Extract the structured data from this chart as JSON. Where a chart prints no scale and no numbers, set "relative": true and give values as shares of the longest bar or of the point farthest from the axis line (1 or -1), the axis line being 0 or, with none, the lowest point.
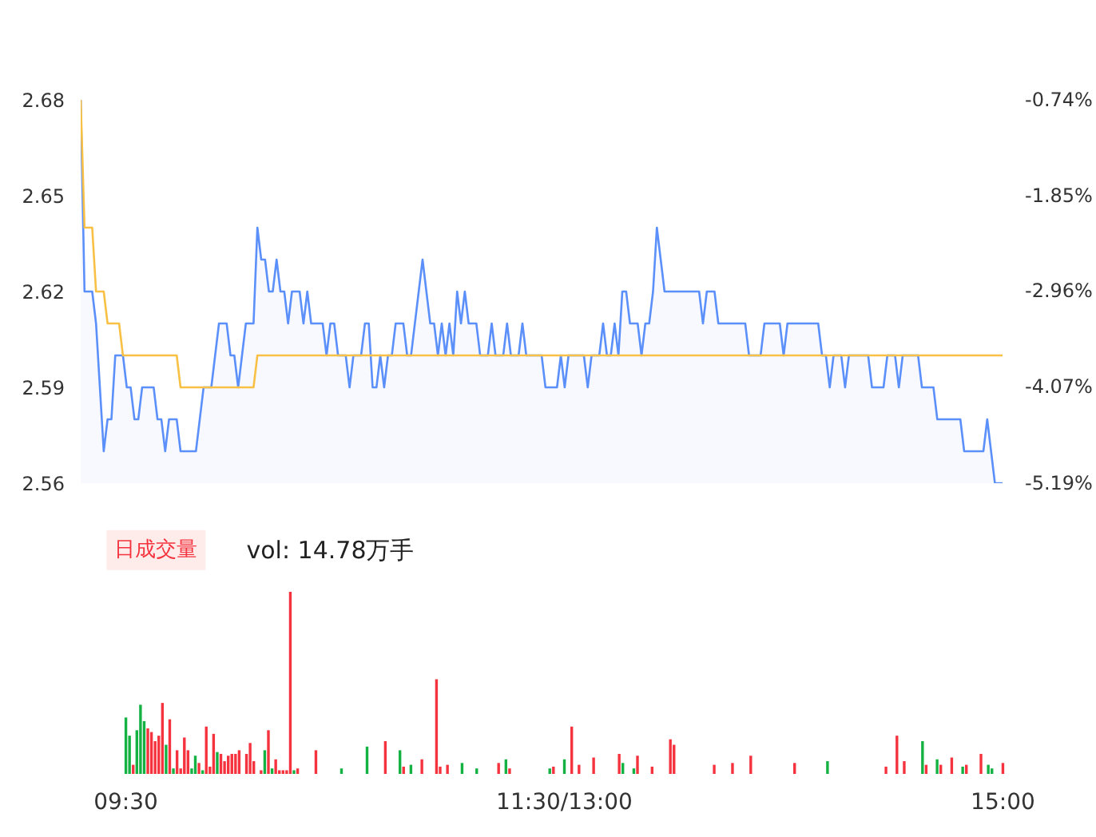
{
  "chart_data": [
    {
      "type": "area",
      "categories": [
        null,
        null,
        null,
        null,
        null,
        null,
        null,
        null,
        null,
        null,
        null,
        null,
        null,
        null,
        null,
        null,
        null,
        null,
        null,
        null,
        null,
        null,
        null,
        null,
        null,
        null,
        null,
        null,
        null,
        null,
        null,
        null,
        null,
        null,
        null,
        null,
        null,
        null,
        null,
        null,
        null,
        null,
        null,
        null,
        null,
        null,
        null,
        null,
        null,
        null,
        null,
        null,
        null,
        null,
        null,
        null,
        null,
        null,
        null,
        null,
        null,
        null,
        null,
        null,
        null,
        null,
        null,
        null,
        null,
        null,
        null,
        null,
        null,
        null,
        null,
        null,
        null,
        null,
        null,
        null,
        null,
        null,
        null,
        null,
        null,
        null,
        null,
        null,
        null,
        null,
        null,
        null,
        null,
        null,
        null,
        null,
        null,
        null,
        null,
        null,
        null,
        null,
        null,
        null,
        null,
        null,
        null,
        null,
        null,
        null,
        null,
        null,
        null,
        null,
        null,
        null,
        null,
        null,
        null,
        null,
        null,
        null,
        null,
        null,
        null,
        null,
        null,
        null,
        null,
        null,
        null,
        null,
        null,
        null,
        null,
        null,
        null,
        null,
        null,
        null,
        null,
        null,
        null,
        null,
        null,
        null,
        null,
        null,
        null,
        null,
        null,
        null,
        null,
        null,
        null,
        null,
        null,
        null,
        null,
        null,
        null,
        null,
        null,
        null,
        null,
        null,
        null,
        null,
        null,
        null,
        null,
        null,
        null,
        null,
        null,
        null,
        null,
        null,
        null,
        null,
        null,
        null,
        null,
        null,
        null,
        null,
        null,
        null,
        null,
        null,
        null,
        null,
        null,
        null,
        null,
        null,
        null,
        null,
        null,
        null,
        null,
        null,
        null,
        null,
        null,
        null,
        null,
        null,
        null,
        null,
        null,
        null,
        null,
        null,
        null,
        null,
        null,
        null,
        null,
        null,
        null,
        null,
        null,
        null,
        null,
        null,
        null,
        null,
        null,
        null,
        null,
        null,
        null,
        null,
        null,
        null,
        null,
        null,
        null,
        null,
        null
      ],
      "ylim": [
        2.56,
        2.68
      ],
      "yticks": [
        2.56,
        2.59,
        2.62,
        2.65,
        2.68
      ],
      "y2lim": [
        -5.19,
        -0.74
      ],
      "y2ticks": [
        {
          "value": -5.19,
          "label": "-5.19%"
        },
        {
          "value": -4.07,
          "label": "-4.07%"
        },
        {
          "value": -2.96,
          "label": "-2.96%"
        },
        {
          "value": -1.85,
          "label": "-1.85%"
        },
        {
          "value": -0.74,
          "label": "-0.74%"
        }
      ],
      "series": [
        {
          "type": "area",
          "color": "#5b8ff9",
          "values": [
            2.68,
            2.62,
            2.62,
            2.62,
            2.61,
            2.59,
            2.57,
            2.58,
            2.58,
            2.6,
            2.6,
            2.6,
            2.59,
            2.59,
            2.58,
            2.58,
            2.59,
            2.59,
            2.59,
            2.59,
            2.58,
            2.58,
            2.57,
            2.58,
            2.58,
            2.58,
            2.57,
            2.57,
            2.57,
            2.57,
            2.57,
            2.58,
            2.59,
            2.59,
            2.59,
            2.6,
            2.61,
            2.61,
            2.61,
            2.6,
            2.6,
            2.59,
            2.6,
            2.61,
            2.61,
            2.61,
            2.64,
            2.63,
            2.63,
            2.62,
            2.62,
            2.63,
            2.62,
            2.62,
            2.61,
            2.62,
            2.62,
            2.62,
            2.61,
            2.62,
            2.61,
            2.61,
            2.61,
            2.61,
            2.6,
            2.61,
            2.61,
            2.6,
            2.6,
            2.6,
            2.59,
            2.6,
            2.6,
            2.6,
            2.61,
            2.61,
            2.59,
            2.59,
            2.6,
            2.59,
            2.6,
            2.6,
            2.61,
            2.61,
            2.61,
            2.6,
            2.6,
            2.61,
            2.62,
            2.63,
            2.62,
            2.61,
            2.61,
            2.6,
            2.61,
            2.6,
            2.61,
            2.6,
            2.62,
            2.61,
            2.62,
            2.61,
            2.61,
            2.61,
            2.6,
            2.6,
            2.6,
            2.61,
            2.6,
            2.6,
            2.6,
            2.61,
            2.6,
            2.6,
            2.6,
            2.61,
            2.6,
            2.6,
            2.6,
            2.6,
            2.6,
            2.59,
            2.59,
            2.59,
            2.59,
            2.6,
            2.59,
            2.6,
            2.6,
            2.6,
            2.6,
            2.6,
            2.59,
            2.6,
            2.6,
            2.6,
            2.61,
            2.6,
            2.6,
            2.61,
            2.6,
            2.62,
            2.62,
            2.61,
            2.61,
            2.61,
            2.6,
            2.61,
            2.61,
            2.62,
            2.64,
            2.63,
            2.62,
            2.62,
            2.62,
            2.62,
            2.62,
            2.62,
            2.62,
            2.62,
            2.62,
            2.62,
            2.61,
            2.62,
            2.62,
            2.62,
            2.61,
            2.61,
            2.61,
            2.61,
            2.61,
            2.61,
            2.61,
            2.61,
            2.6,
            2.6,
            2.6,
            2.6,
            2.61,
            2.61,
            2.61,
            2.61,
            2.61,
            2.6,
            2.61,
            2.61,
            2.61,
            2.61,
            2.61,
            2.61,
            2.61,
            2.61,
            2.61,
            2.6,
            2.6,
            2.59,
            2.6,
            2.6,
            2.6,
            2.59,
            2.6,
            2.6,
            2.6,
            2.6,
            2.6,
            2.6,
            2.59,
            2.59,
            2.59,
            2.59,
            2.6,
            2.6,
            2.6,
            2.59,
            2.6,
            2.6,
            2.6,
            2.6,
            2.6,
            2.59,
            2.59,
            2.59,
            2.59,
            2.58,
            2.58,
            2.58,
            2.58,
            2.58,
            2.58,
            2.58,
            2.57,
            2.57,
            2.57,
            2.57,
            2.57,
            2.57,
            2.58,
            2.57,
            2.56,
            2.56,
            2.56
          ]
        },
        {
          "type": "line",
          "color": "#f8c145",
          "values": [
            2.68,
            2.64,
            2.64,
            2.64,
            2.62,
            2.62,
            2.62,
            2.61,
            2.61,
            2.61,
            2.61,
            2.6,
            2.6,
            2.6,
            2.6,
            2.6,
            2.6,
            2.6,
            2.6,
            2.6,
            2.6,
            2.6,
            2.6,
            2.6,
            2.6,
            2.6,
            2.59,
            2.59,
            2.59,
            2.59,
            2.59,
            2.59,
            2.59,
            2.59,
            2.59,
            2.59,
            2.59,
            2.59,
            2.59,
            2.59,
            2.59,
            2.59,
            2.59,
            2.59,
            2.59,
            2.59,
            2.6,
            2.6,
            2.6,
            2.6,
            2.6,
            2.6,
            2.6,
            2.6,
            2.6,
            2.6,
            2.6,
            2.6,
            2.6,
            2.6,
            2.6,
            2.6,
            2.6,
            2.6,
            2.6,
            2.6,
            2.6,
            2.6,
            2.6,
            2.6,
            2.6,
            2.6,
            2.6,
            2.6,
            2.6,
            2.6,
            2.6,
            2.6,
            2.6,
            2.6,
            2.6,
            2.6,
            2.6,
            2.6,
            2.6,
            2.6,
            2.6,
            2.6,
            2.6,
            2.6,
            2.6,
            2.6,
            2.6,
            2.6,
            2.6,
            2.6,
            2.6,
            2.6,
            2.6,
            2.6,
            2.6,
            2.6,
            2.6,
            2.6,
            2.6,
            2.6,
            2.6,
            2.6,
            2.6,
            2.6,
            2.6,
            2.6,
            2.6,
            2.6,
            2.6,
            2.6,
            2.6,
            2.6,
            2.6,
            2.6,
            2.6,
            2.6,
            2.6,
            2.6,
            2.6,
            2.6,
            2.6,
            2.6,
            2.6,
            2.6,
            2.6,
            2.6,
            2.6,
            2.6,
            2.6,
            2.6,
            2.6,
            2.6,
            2.6,
            2.6,
            2.6,
            2.6,
            2.6,
            2.6,
            2.6,
            2.6,
            2.6,
            2.6,
            2.6,
            2.6,
            2.6,
            2.6,
            2.6,
            2.6,
            2.6,
            2.6,
            2.6,
            2.6,
            2.6,
            2.6,
            2.6,
            2.6,
            2.6,
            2.6,
            2.6,
            2.6,
            2.6,
            2.6,
            2.6,
            2.6,
            2.6,
            2.6,
            2.6,
            2.6,
            2.6,
            2.6,
            2.6,
            2.6,
            2.6,
            2.6,
            2.6,
            2.6,
            2.6,
            2.6,
            2.6,
            2.6,
            2.6,
            2.6,
            2.6,
            2.6,
            2.6,
            2.6,
            2.6,
            2.6,
            2.6,
            2.6,
            2.6,
            2.6,
            2.6,
            2.6,
            2.6,
            2.6,
            2.6,
            2.6,
            2.6,
            2.6,
            2.6,
            2.6,
            2.6,
            2.6,
            2.6,
            2.6,
            2.6,
            2.6,
            2.6,
            2.6,
            2.6,
            2.6,
            2.6,
            2.6,
            2.6,
            2.6,
            2.6,
            2.6,
            2.6,
            2.6,
            2.6,
            2.6,
            2.6,
            2.6,
            2.6,
            2.6,
            2.6,
            2.6,
            2.6,
            2.6,
            2.6,
            2.6,
            2.6,
            2.6,
            2.6
          ]
        }
      ]
    },
    {
      "type": "bar",
      "relative": true,
      "categories": [
        "09:30",
        null,
        null,
        null,
        null,
        null,
        null,
        null,
        null,
        null,
        null,
        null,
        null,
        null,
        null,
        null,
        null,
        null,
        null,
        null,
        null,
        null,
        null,
        null,
        null,
        null,
        null,
        null,
        null,
        null,
        null,
        null,
        null,
        null,
        null,
        null,
        null,
        null,
        null,
        null,
        null,
        null,
        null,
        null,
        null,
        null,
        null,
        null,
        null,
        null,
        null,
        null,
        null,
        null,
        null,
        null,
        null,
        null,
        null,
        null,
        null,
        null,
        null,
        null,
        null,
        null,
        null,
        null,
        null,
        null,
        null,
        null,
        null,
        null,
        null,
        null,
        null,
        null,
        null,
        null,
        null,
        null,
        null,
        null,
        null,
        null,
        null,
        null,
        null,
        null,
        null,
        null,
        null,
        null,
        null,
        null,
        null,
        null,
        null,
        null,
        null,
        null,
        null,
        null,
        null,
        null,
        null,
        null,
        null,
        null,
        null,
        null,
        null,
        null,
        null,
        null,
        null,
        null,
        null,
        null,
        "11:30/13:00",
        null,
        null,
        null,
        null,
        null,
        null,
        null,
        null,
        null,
        null,
        null,
        null,
        null,
        null,
        null,
        null,
        null,
        null,
        null,
        null,
        null,
        null,
        null,
        null,
        null,
        null,
        null,
        null,
        null,
        null,
        null,
        null,
        null,
        null,
        null,
        null,
        null,
        null,
        null,
        null,
        null,
        null,
        null,
        null,
        null,
        null,
        null,
        null,
        null,
        null,
        null,
        null,
        null,
        null,
        null,
        null,
        null,
        null,
        null,
        null,
        null,
        null,
        null,
        null,
        null,
        null,
        null,
        null,
        null,
        null,
        null,
        null,
        null,
        null,
        null,
        null,
        null,
        null,
        null,
        null,
        null,
        null,
        null,
        null,
        null,
        null,
        null,
        null,
        null,
        null,
        null,
        null,
        null,
        null,
        null,
        null,
        null,
        null,
        null,
        null,
        null,
        null,
        null,
        null,
        null,
        null,
        null,
        null,
        null,
        null,
        null,
        null,
        null,
        null,
        null,
        null,
        null,
        null,
        null,
        "15:00"
      ],
      "tick_labels": "x",
      "annotations": [
        "日成交量",
        "vol: 14.78万手"
      ],
      "series": [
        {
          "color": "#f5333f",
          "values": [
            null,
            null,
            0.05,
            null,
            null,
            null,
            0.25,
            0.23,
            0.18,
            0.21,
            0.39,
            null,
            0.3,
            null,
            0.13,
            0.03,
            0.2,
            0.13,
            null,
            null,
            0.06,
            null,
            0.26,
            0.04,
            0.22,
            null,
            0.11,
            0.07,
            0.1,
            0.11,
            0.11,
            0.13,
            null,
            0.11,
            0.17,
            0.07,
            null,
            0.02,
            null,
            0.24,
            null,
            0.08,
            0.02,
            0.02,
            0.02,
            1,
            null,
            0.03,
            null,
            null,
            null,
            null,
            0.13,
            null,
            null,
            null,
            null,
            null,
            null,
            null,
            null,
            null,
            null,
            null,
            null,
            null,
            null,
            null,
            null,
            null,
            null,
            0.18,
            null,
            null,
            null,
            null,
            0.04,
            null,
            null,
            null,
            null,
            0.08,
            null,
            null,
            null,
            0.52,
            0.04,
            null,
            0.05,
            null,
            null,
            null,
            null,
            null,
            null,
            null,
            null,
            null,
            null,
            null,
            null,
            null,
            0.06,
            null,
            null,
            0.03,
            null,
            null,
            null,
            null,
            null,
            null,
            null,
            null,
            null,
            null,
            null,
            0.04,
            null,
            null,
            null,
            null,
            0.26,
            null,
            0.05,
            null,
            null,
            null,
            0.09,
            null,
            null,
            null,
            null,
            null,
            null,
            0.11,
            null,
            null,
            null,
            null,
            0.1,
            null,
            null,
            null,
            0.04,
            null,
            null,
            null,
            null,
            0.19,
            0.16,
            null,
            null,
            null,
            null,
            null,
            null,
            null,
            null,
            null,
            null,
            0.05,
            null,
            null,
            null,
            null,
            0.06,
            null,
            null,
            null,
            null,
            0.1,
            null,
            null,
            null,
            null,
            null,
            null,
            null,
            null,
            null,
            null,
            null,
            0.06,
            null,
            null,
            null,
            null,
            null,
            null,
            null,
            null,
            null,
            null,
            null,
            null,
            null,
            null,
            null,
            null,
            null,
            null,
            null,
            null,
            null,
            null,
            null,
            null,
            0.04,
            null,
            null,
            0.21,
            null,
            0.07,
            null,
            null,
            null,
            null,
            null,
            0.05,
            null,
            null,
            null,
            0.05,
            null,
            null,
            0.09,
            null,
            null,
            null,
            0.05,
            null,
            null,
            null,
            0.11,
            null,
            null,
            null,
            null,
            null,
            0.06
          ]
        },
        {
          "color": "#14b143",
          "values": [
            0.31,
            0.21,
            null,
            0.24,
            0.38,
            0.29,
            null,
            null,
            null,
            null,
            null,
            0.16,
            null,
            0.03,
            null,
            null,
            null,
            null,
            0.03,
            0.1,
            null,
            0.02,
            null,
            null,
            null,
            0.12,
            null,
            null,
            null,
            null,
            null,
            null,
            null,
            null,
            null,
            null,
            null,
            null,
            0.13,
            null,
            0.03,
            null,
            null,
            null,
            null,
            null,
            0.02,
            null,
            null,
            null,
            null,
            null,
            null,
            null,
            null,
            null,
            null,
            null,
            null,
            0.03,
            null,
            null,
            null,
            null,
            null,
            null,
            0.15,
            null,
            null,
            null,
            null,
            null,
            null,
            null,
            null,
            0.13,
            null,
            null,
            0.05,
            null,
            null,
            null,
            null,
            null,
            null,
            null,
            null,
            null,
            null,
            null,
            null,
            null,
            0.06,
            null,
            null,
            null,
            0.03,
            null,
            null,
            null,
            null,
            null,
            null,
            null,
            0.08,
            null,
            null,
            null,
            null,
            null,
            null,
            null,
            null,
            null,
            null,
            null,
            0.03,
            null,
            null,
            null,
            0.08,
            null,
            null,
            null,
            null,
            null,
            null,
            null,
            null,
            null,
            null,
            null,
            null,
            null,
            null,
            null,
            0.06,
            null,
            null,
            0.03,
            null,
            null,
            null,
            null,
            null,
            null,
            null,
            null,
            null,
            null,
            null,
            null,
            null,
            null,
            null,
            null,
            null,
            null,
            null,
            null,
            null,
            null,
            null,
            null,
            null,
            null,
            null,
            null,
            null,
            null,
            null,
            null,
            null,
            null,
            null,
            null,
            null,
            null,
            null,
            null,
            null,
            null,
            null,
            null,
            null,
            null,
            null,
            null,
            null,
            null,
            null,
            null,
            0.07,
            null,
            null,
            null,
            null,
            null,
            null,
            null,
            null,
            null,
            null,
            null,
            null,
            null,
            null,
            null,
            null,
            null,
            null,
            null,
            null,
            null,
            null,
            null,
            null,
            null,
            0.18,
            null,
            null,
            null,
            0.08,
            null,
            null,
            null,
            null,
            null,
            null,
            0.04,
            null,
            null,
            null,
            null,
            null,
            null,
            0.05,
            0.03,
            null,
            null,
            null
          ]
        }
      ]
    }
  ]
}
